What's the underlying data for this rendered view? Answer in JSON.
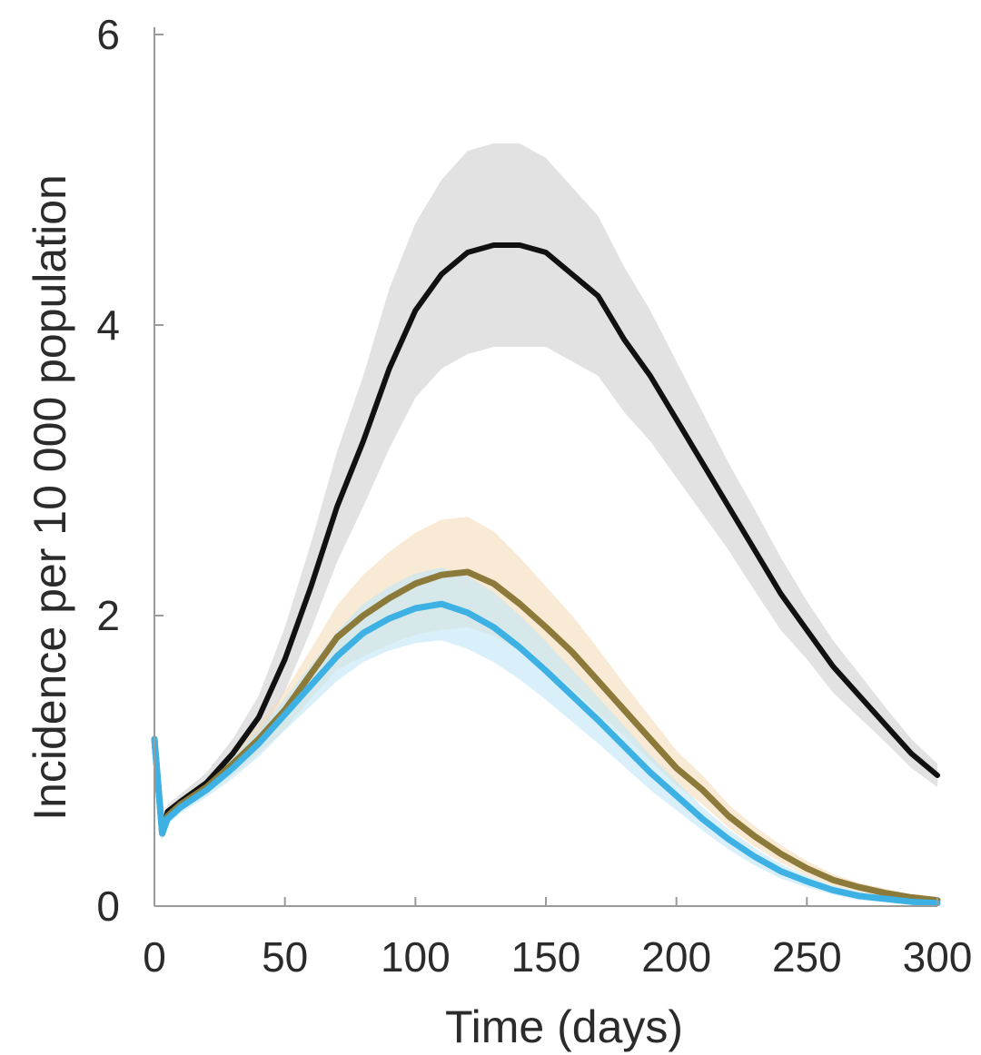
{
  "chart_data": {
    "type": "line",
    "title": "",
    "xlabel": "Time (days)",
    "ylabel": "Incidence per 10 000 population",
    "xlim": [
      0,
      300
    ],
    "ylim": [
      0,
      6
    ],
    "xticks": [
      "0",
      "50",
      "100",
      "150",
      "200",
      "250",
      "300"
    ],
    "yticks": [
      "0",
      "2",
      "4",
      "6"
    ],
    "grid": false,
    "legend": "none",
    "series": [
      {
        "color": "#111111",
        "band_color": "#cfcfcf",
        "x": [
          0,
          3,
          5,
          10,
          20,
          30,
          40,
          50,
          60,
          70,
          80,
          90,
          100,
          110,
          120,
          130,
          140,
          150,
          160,
          170,
          180,
          190,
          200,
          210,
          220,
          230,
          240,
          250,
          260,
          270,
          280,
          290,
          300
        ],
        "y": [
          1.15,
          0.5,
          0.65,
          0.72,
          0.85,
          1.05,
          1.3,
          1.7,
          2.2,
          2.75,
          3.2,
          3.7,
          4.1,
          4.35,
          4.5,
          4.55,
          4.55,
          4.5,
          4.35,
          4.2,
          3.9,
          3.65,
          3.35,
          3.05,
          2.75,
          2.45,
          2.15,
          1.9,
          1.65,
          1.45,
          1.25,
          1.05,
          0.9
        ],
        "band_width": [
          0.05,
          0.05,
          0.05,
          0.05,
          0.07,
          0.1,
          0.15,
          0.22,
          0.3,
          0.38,
          0.45,
          0.55,
          0.6,
          0.65,
          0.7,
          0.7,
          0.7,
          0.65,
          0.6,
          0.55,
          0.5,
          0.45,
          0.4,
          0.35,
          0.3,
          0.28,
          0.25,
          0.2,
          0.18,
          0.15,
          0.12,
          0.1,
          0.08
        ]
      },
      {
        "color": "#8c7a3a",
        "band_color": "#f3dcb8",
        "x": [
          0,
          3,
          5,
          10,
          20,
          30,
          40,
          50,
          60,
          70,
          80,
          90,
          100,
          110,
          120,
          130,
          140,
          150,
          160,
          170,
          180,
          190,
          200,
          210,
          220,
          230,
          240,
          250,
          260,
          270,
          280,
          290,
          300
        ],
        "y": [
          1.15,
          0.5,
          0.62,
          0.7,
          0.82,
          0.98,
          1.15,
          1.35,
          1.6,
          1.85,
          2.0,
          2.12,
          2.22,
          2.28,
          2.3,
          2.22,
          2.08,
          1.92,
          1.75,
          1.55,
          1.35,
          1.15,
          0.95,
          0.8,
          0.62,
          0.48,
          0.36,
          0.26,
          0.18,
          0.13,
          0.09,
          0.06,
          0.04
        ],
        "band_width": [
          0.04,
          0.04,
          0.04,
          0.04,
          0.05,
          0.08,
          0.1,
          0.13,
          0.17,
          0.22,
          0.28,
          0.32,
          0.35,
          0.38,
          0.38,
          0.36,
          0.32,
          0.28,
          0.25,
          0.22,
          0.18,
          0.15,
          0.12,
          0.1,
          0.08,
          0.07,
          0.06,
          0.05,
          0.04,
          0.03,
          0.03,
          0.02,
          0.02
        ]
      },
      {
        "color": "#3db1e3",
        "band_color": "#bfe6f7",
        "x": [
          0,
          3,
          5,
          10,
          20,
          30,
          40,
          50,
          60,
          70,
          80,
          90,
          100,
          110,
          120,
          130,
          140,
          150,
          160,
          170,
          180,
          190,
          200,
          210,
          220,
          230,
          240,
          250,
          260,
          270,
          280,
          290,
          300
        ],
        "y": [
          1.15,
          0.5,
          0.6,
          0.68,
          0.8,
          0.95,
          1.12,
          1.32,
          1.52,
          1.72,
          1.88,
          1.98,
          2.05,
          2.08,
          2.02,
          1.92,
          1.78,
          1.62,
          1.45,
          1.28,
          1.1,
          0.92,
          0.76,
          0.6,
          0.46,
          0.34,
          0.24,
          0.17,
          0.11,
          0.07,
          0.05,
          0.03,
          0.02
        ],
        "band_width": [
          0.04,
          0.04,
          0.04,
          0.04,
          0.05,
          0.07,
          0.09,
          0.11,
          0.14,
          0.17,
          0.2,
          0.22,
          0.24,
          0.25,
          0.25,
          0.24,
          0.22,
          0.2,
          0.18,
          0.16,
          0.14,
          0.12,
          0.1,
          0.08,
          0.07,
          0.06,
          0.05,
          0.04,
          0.03,
          0.03,
          0.02,
          0.02,
          0.02
        ]
      }
    ]
  }
}
